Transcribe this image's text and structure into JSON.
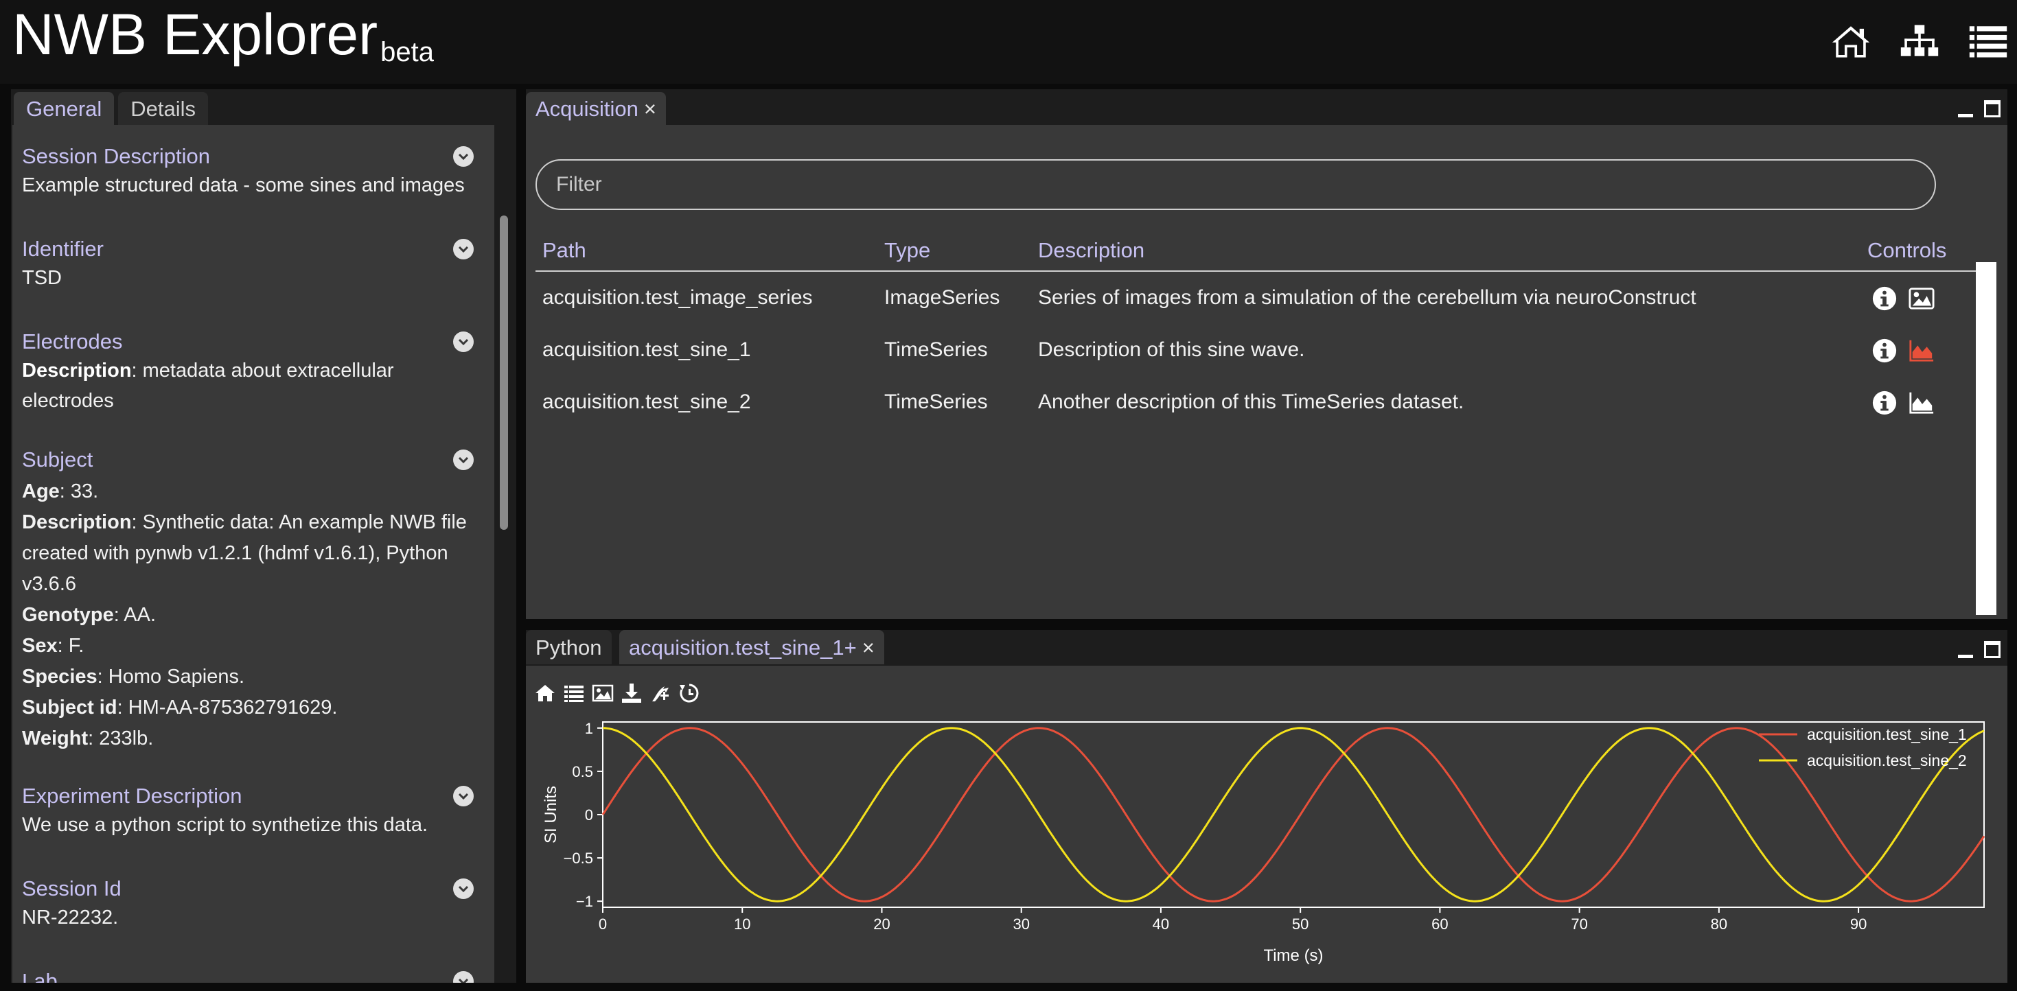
{
  "app": {
    "title": "NWB Explorer",
    "badge": "beta"
  },
  "topnav": {
    "icons": [
      "home-icon",
      "sitemap-icon",
      "list-icon"
    ]
  },
  "sidebar": {
    "tabs": [
      {
        "label": "General"
      },
      {
        "label": "Details"
      }
    ],
    "sections": {
      "session_description": {
        "title": "Session Description",
        "text": "Example structured data - some sines and images"
      },
      "identifier": {
        "title": "Identifier",
        "text": "TSD"
      },
      "electrodes": {
        "title": "Electrodes",
        "key": "Description",
        "value": ": metadata about extracellular electrodes"
      },
      "subject": {
        "title": "Subject",
        "fields": [
          {
            "key": "Age",
            "value": ": 33."
          },
          {
            "key": "Description",
            "value": ": Synthetic data: An example NWB file created with pynwb v1.2.1 (hdmf v1.6.1), Python v3.6.6"
          },
          {
            "key": "Genotype",
            "value": ": AA."
          },
          {
            "key": "Sex",
            "value": ": F."
          },
          {
            "key": "Species",
            "value": ": Homo Sapiens."
          },
          {
            "key": "Subject id",
            "value": ": HM-AA-875362791629."
          },
          {
            "key": "Weight",
            "value": ": 233lb."
          }
        ]
      },
      "experiment_description": {
        "title": "Experiment Description",
        "text": "We use a python script to synthetize this data."
      },
      "session_id": {
        "title": "Session Id",
        "text": "NR-22232."
      },
      "lab": {
        "title": "Lab"
      }
    }
  },
  "acquisition": {
    "tab_label": "Acquisition",
    "close": "×",
    "filter_placeholder": "Filter",
    "columns": {
      "path": "Path",
      "type": "Type",
      "description": "Description",
      "controls": "Controls"
    },
    "rows": [
      {
        "path": "acquisition.test_image_series",
        "type": "ImageSeries",
        "description": "Series of images from a simulation of the cerebellum via neuroConstruct",
        "controls": [
          "info-icon",
          "image-icon"
        ]
      },
      {
        "path": "acquisition.test_sine_1",
        "type": "TimeSeries",
        "description": "Description of this sine wave.",
        "controls": [
          "info-icon",
          "area-chart-icon"
        ],
        "plot_active": true
      },
      {
        "path": "acquisition.test_sine_2",
        "type": "TimeSeries",
        "description": "Another description of this TimeSeries dataset.",
        "controls": [
          "info-icon",
          "area-chart-icon"
        ],
        "plot_active": false
      }
    ]
  },
  "plot_panel": {
    "tabs": [
      {
        "label": "Python"
      },
      {
        "label": "acquisition.test_sine_1+",
        "close": "×"
      }
    ],
    "toolbar": [
      "home-icon",
      "list-icon",
      "image-icon",
      "download-icon",
      "pan-icon",
      "reset-icon"
    ]
  },
  "colors": {
    "accent": "#c7c1f2",
    "series1": "#e8503a",
    "series2": "#f5e21b",
    "active_plot_icon": "#e8503a"
  },
  "chart_data": {
    "type": "line",
    "xlabel": "Time (s)",
    "ylabel": "SI Units",
    "xlim": [
      0,
      99
    ],
    "ylim": [
      -1.07,
      1.07
    ],
    "xticks": [
      0,
      10,
      20,
      30,
      40,
      50,
      60,
      70,
      80,
      90
    ],
    "yticks": [
      -1,
      -0.5,
      0,
      0.5,
      1
    ],
    "legend": "top-right",
    "series": [
      {
        "name": "acquisition.test_sine_1",
        "function": "sin",
        "period": 25,
        "color": "#e8503a"
      },
      {
        "name": "acquisition.test_sine_2",
        "function": "cos",
        "period": 25,
        "color": "#f5e21b"
      }
    ]
  }
}
